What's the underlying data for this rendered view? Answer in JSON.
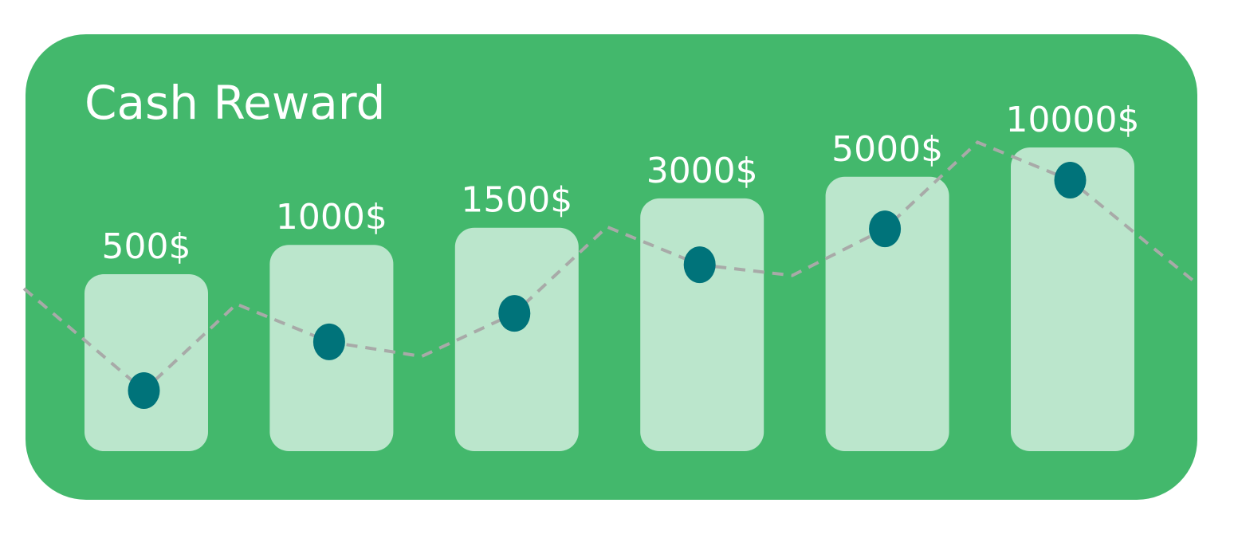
{
  "title": "Cash Reward",
  "colors": {
    "card": "#43b86c",
    "bar": "#bbe6cc",
    "point": "#00737a",
    "trend_line": "#a8aaa8",
    "text": "#ffffff"
  },
  "chart_data": {
    "type": "bar",
    "title": "Cash Reward",
    "categories": [
      "500$",
      "1000$",
      "1500$",
      "3000$",
      "5000$",
      "10000$"
    ],
    "values": [
      500,
      1000,
      1500,
      3000,
      5000,
      10000
    ],
    "xlabel": "",
    "ylabel": "",
    "grid": false,
    "legend": "none",
    "overlay": {
      "type": "line",
      "style": "dashed",
      "markers": "circle"
    }
  }
}
